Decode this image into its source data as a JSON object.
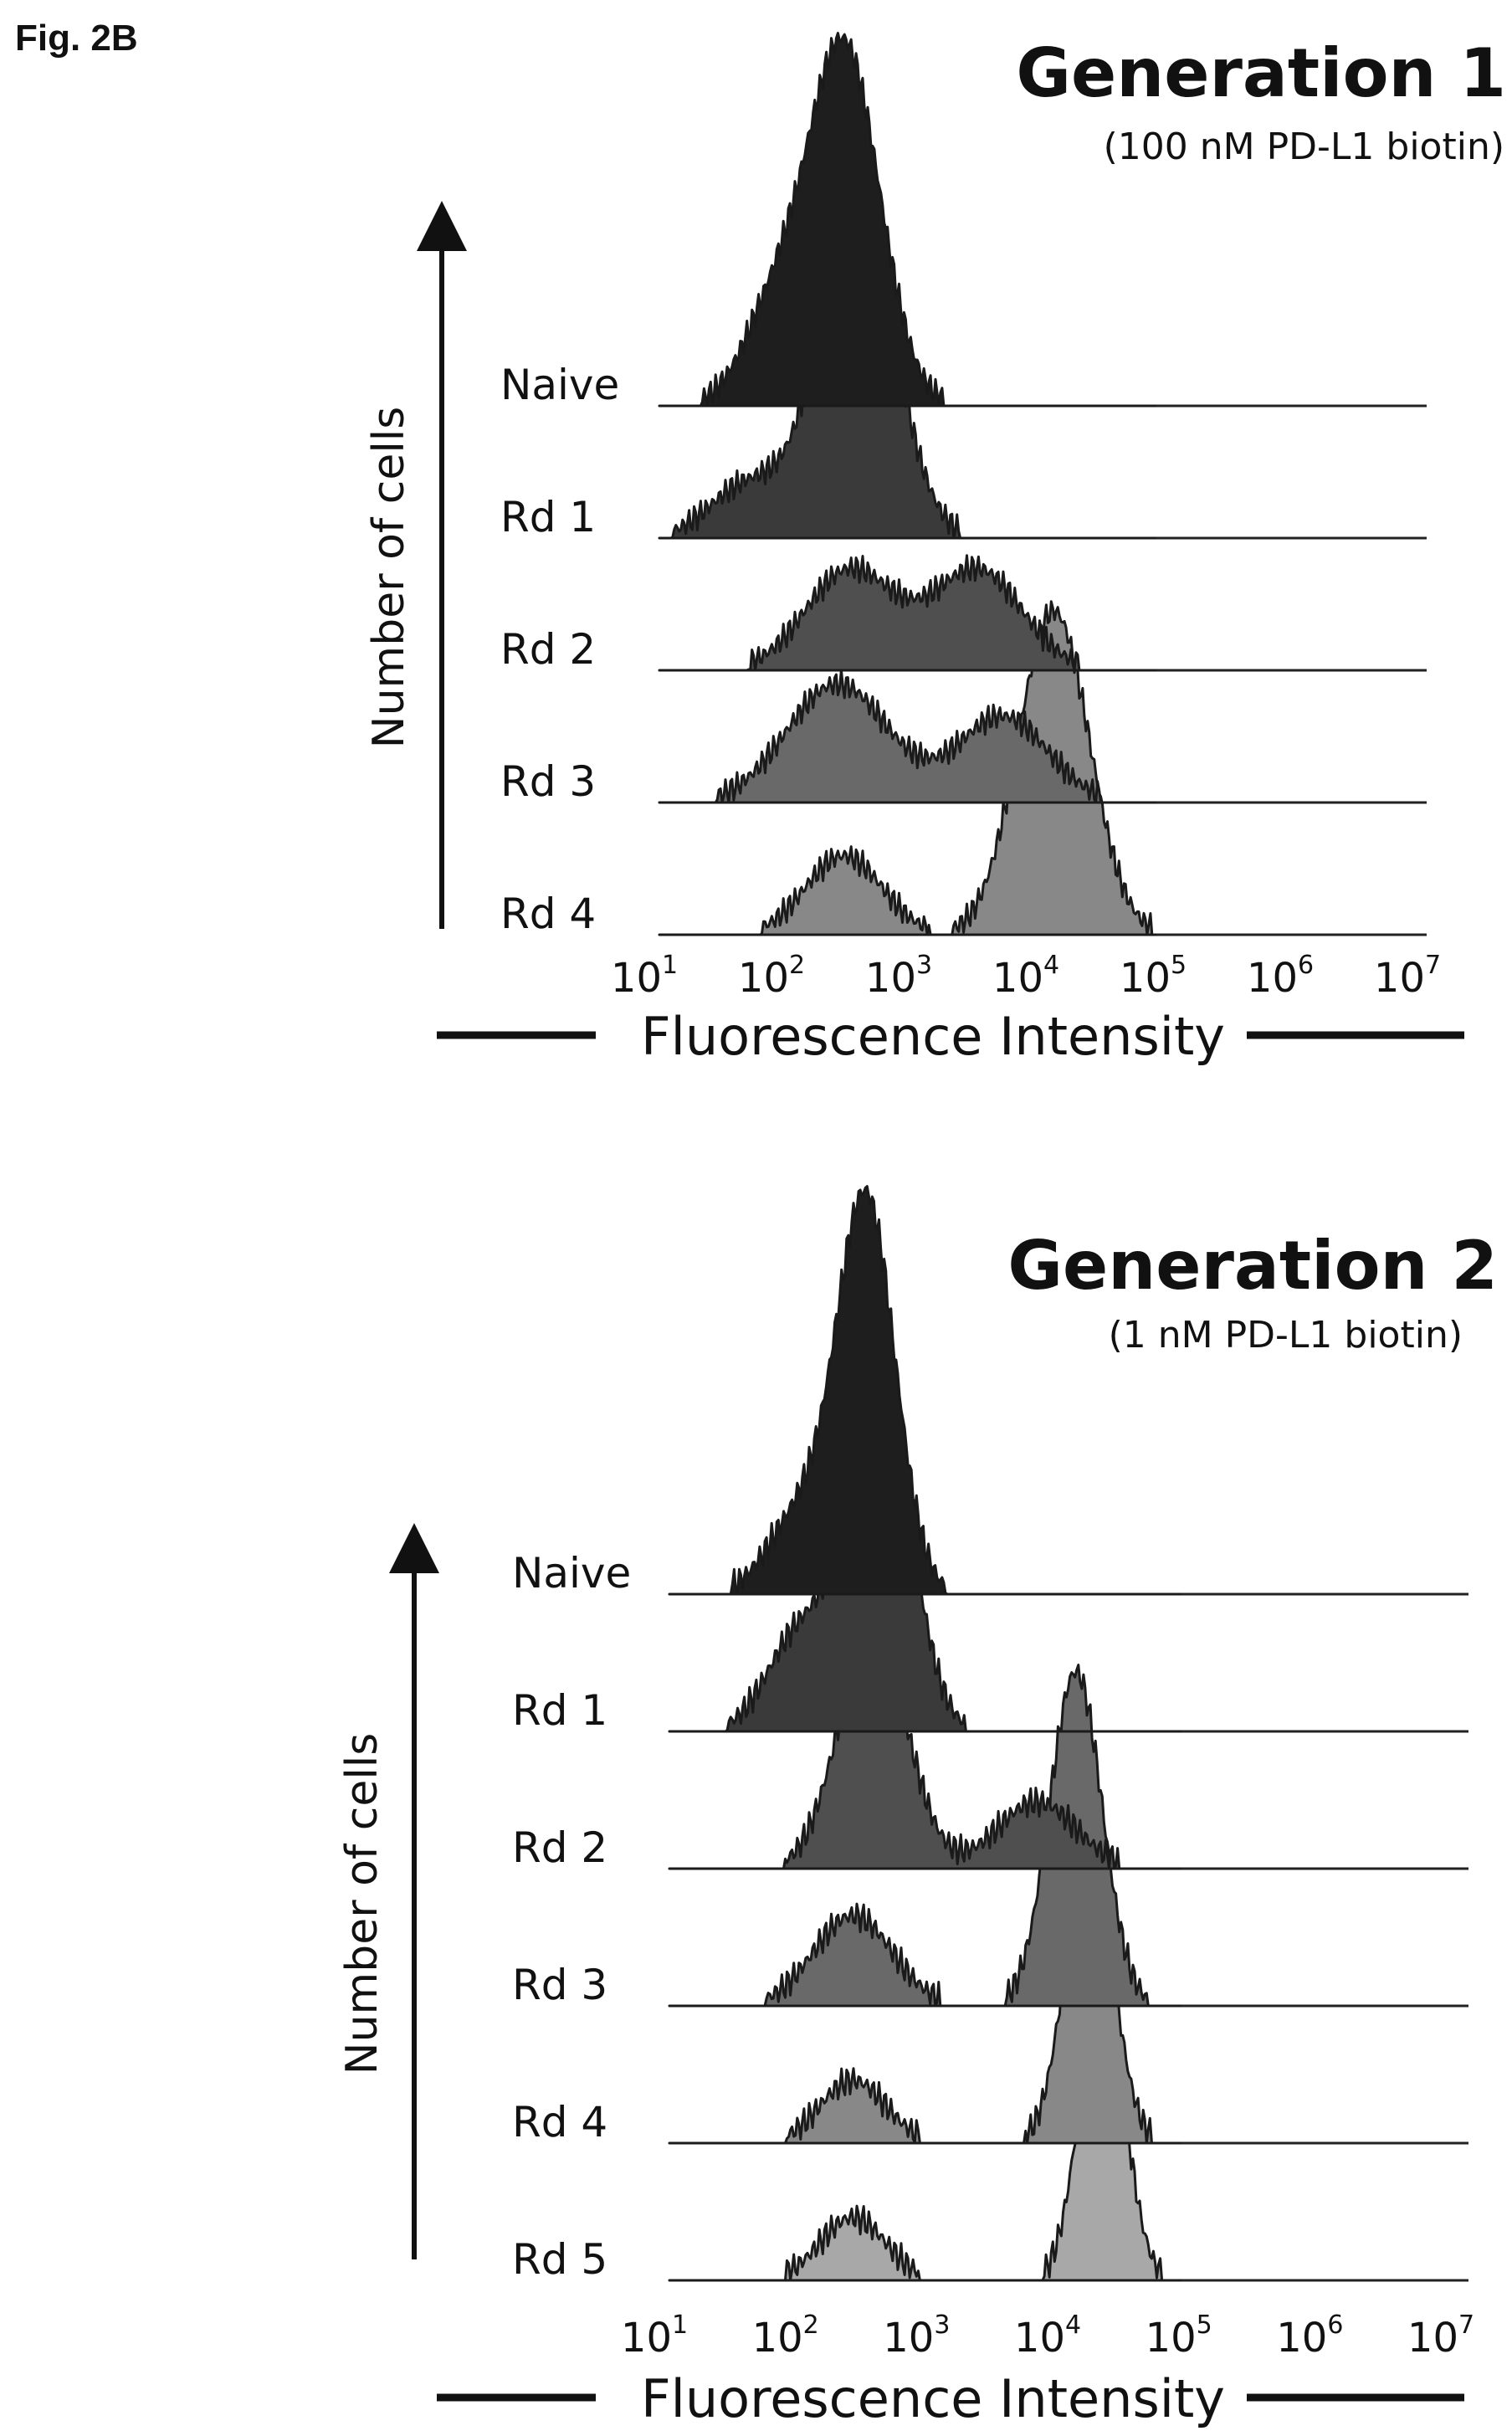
{
  "figure_label": "Fig. 2B",
  "colors": {
    "naive": "#1e1e1e",
    "rd1": "#3a3a3a",
    "rd2": "#4f4f4f",
    "rd3": "#696969",
    "rd4": "#888888",
    "rd5": "#a8a8a8",
    "outline": "#1a1a1a",
    "baseline": "#222222"
  },
  "chart_data": [
    {
      "type": "area",
      "title": "Generation 1",
      "subtitle": "(100 nM PD-L1 biotin)",
      "xlabel": "Fluorescence Intensity",
      "ylabel": "Number of cells",
      "x_scale": "log",
      "xlim": [
        10,
        10000000
      ],
      "x_ticks": [
        {
          "base": "10",
          "exp": "1"
        },
        {
          "base": "10",
          "exp": "2"
        },
        {
          "base": "10",
          "exp": "3"
        },
        {
          "base": "10",
          "exp": "4"
        },
        {
          "base": "10",
          "exp": "5"
        },
        {
          "base": "10",
          "exp": "6"
        },
        {
          "base": "10",
          "exp": "7"
        }
      ],
      "series": [
        {
          "name": "Naive",
          "color_key": "naive",
          "peaks": [
            {
              "log_x": 2.45,
              "height": 1.0,
              "width": 0.28
            },
            {
              "log_x": 1.9,
              "height": 0.25,
              "width": 0.25
            }
          ]
        },
        {
          "name": "Rd 1",
          "color_key": "rd1",
          "peaks": [
            {
              "log_x": 2.55,
              "height": 0.9,
              "width": 0.3
            },
            {
              "log_x": 1.7,
              "height": 0.15,
              "width": 0.3
            }
          ]
        },
        {
          "name": "Rd 2",
          "color_key": "rd2",
          "peaks": [
            {
              "log_x": 2.5,
              "height": 0.28,
              "width": 0.35
            },
            {
              "log_x": 3.5,
              "height": 0.28,
              "width": 0.35
            }
          ]
        },
        {
          "name": "Rd 3",
          "color_key": "rd3",
          "peaks": [
            {
              "log_x": 2.4,
              "height": 0.33,
              "width": 0.4
            },
            {
              "log_x": 3.7,
              "height": 0.24,
              "width": 0.35
            }
          ]
        },
        {
          "name": "Rd 4",
          "color_key": "rd4",
          "peaks": [
            {
              "log_x": 2.45,
              "height": 0.22,
              "width": 0.3
            },
            {
              "log_x": 4.1,
              "height": 0.9,
              "width": 0.28
            }
          ]
        }
      ]
    },
    {
      "type": "area",
      "title": "Generation 2",
      "subtitle": "(1 nM PD-L1 biotin)",
      "xlabel": "Fluorescence Intensity",
      "ylabel": "Number of cells",
      "x_scale": "log",
      "xlim": [
        10,
        10000000
      ],
      "x_ticks": [
        {
          "base": "10",
          "exp": "1"
        },
        {
          "base": "10",
          "exp": "2"
        },
        {
          "base": "10",
          "exp": "3"
        },
        {
          "base": "10",
          "exp": "4"
        },
        {
          "base": "10",
          "exp": "5"
        },
        {
          "base": "10",
          "exp": "6"
        },
        {
          "base": "10",
          "exp": "7"
        }
      ],
      "series": [
        {
          "name": "Naive",
          "color_key": "naive",
          "peaks": [
            {
              "log_x": 2.5,
              "height": 1.0,
              "width": 0.22
            },
            {
              "log_x": 2.0,
              "height": 0.2,
              "width": 0.25
            }
          ]
        },
        {
          "name": "Rd 1",
          "color_key": "rd1",
          "peaks": [
            {
              "log_x": 2.6,
              "height": 0.87,
              "width": 0.24
            },
            {
              "log_x": 2.0,
              "height": 0.25,
              "width": 0.25
            }
          ]
        },
        {
          "name": "Rd 2",
          "color_key": "rd2",
          "peaks": [
            {
              "log_x": 2.55,
              "height": 0.6,
              "width": 0.26
            },
            {
              "log_x": 3.8,
              "height": 0.17,
              "width": 0.3
            }
          ]
        },
        {
          "name": "Rd 3",
          "color_key": "rd3",
          "peaks": [
            {
              "log_x": 2.4,
              "height": 0.23,
              "width": 0.3
            },
            {
              "log_x": 4.1,
              "height": 0.85,
              "width": 0.2
            }
          ]
        },
        {
          "name": "Rd 4",
          "color_key": "rd4",
          "peaks": [
            {
              "log_x": 2.4,
              "height": 0.16,
              "width": 0.25
            },
            {
              "log_x": 4.2,
              "height": 0.75,
              "width": 0.18
            }
          ]
        },
        {
          "name": "Rd 5",
          "color_key": "rd5",
          "peaks": [
            {
              "log_x": 2.4,
              "height": 0.16,
              "width": 0.25
            },
            {
              "log_x": 4.3,
              "height": 0.75,
              "width": 0.17
            }
          ]
        }
      ]
    }
  ]
}
